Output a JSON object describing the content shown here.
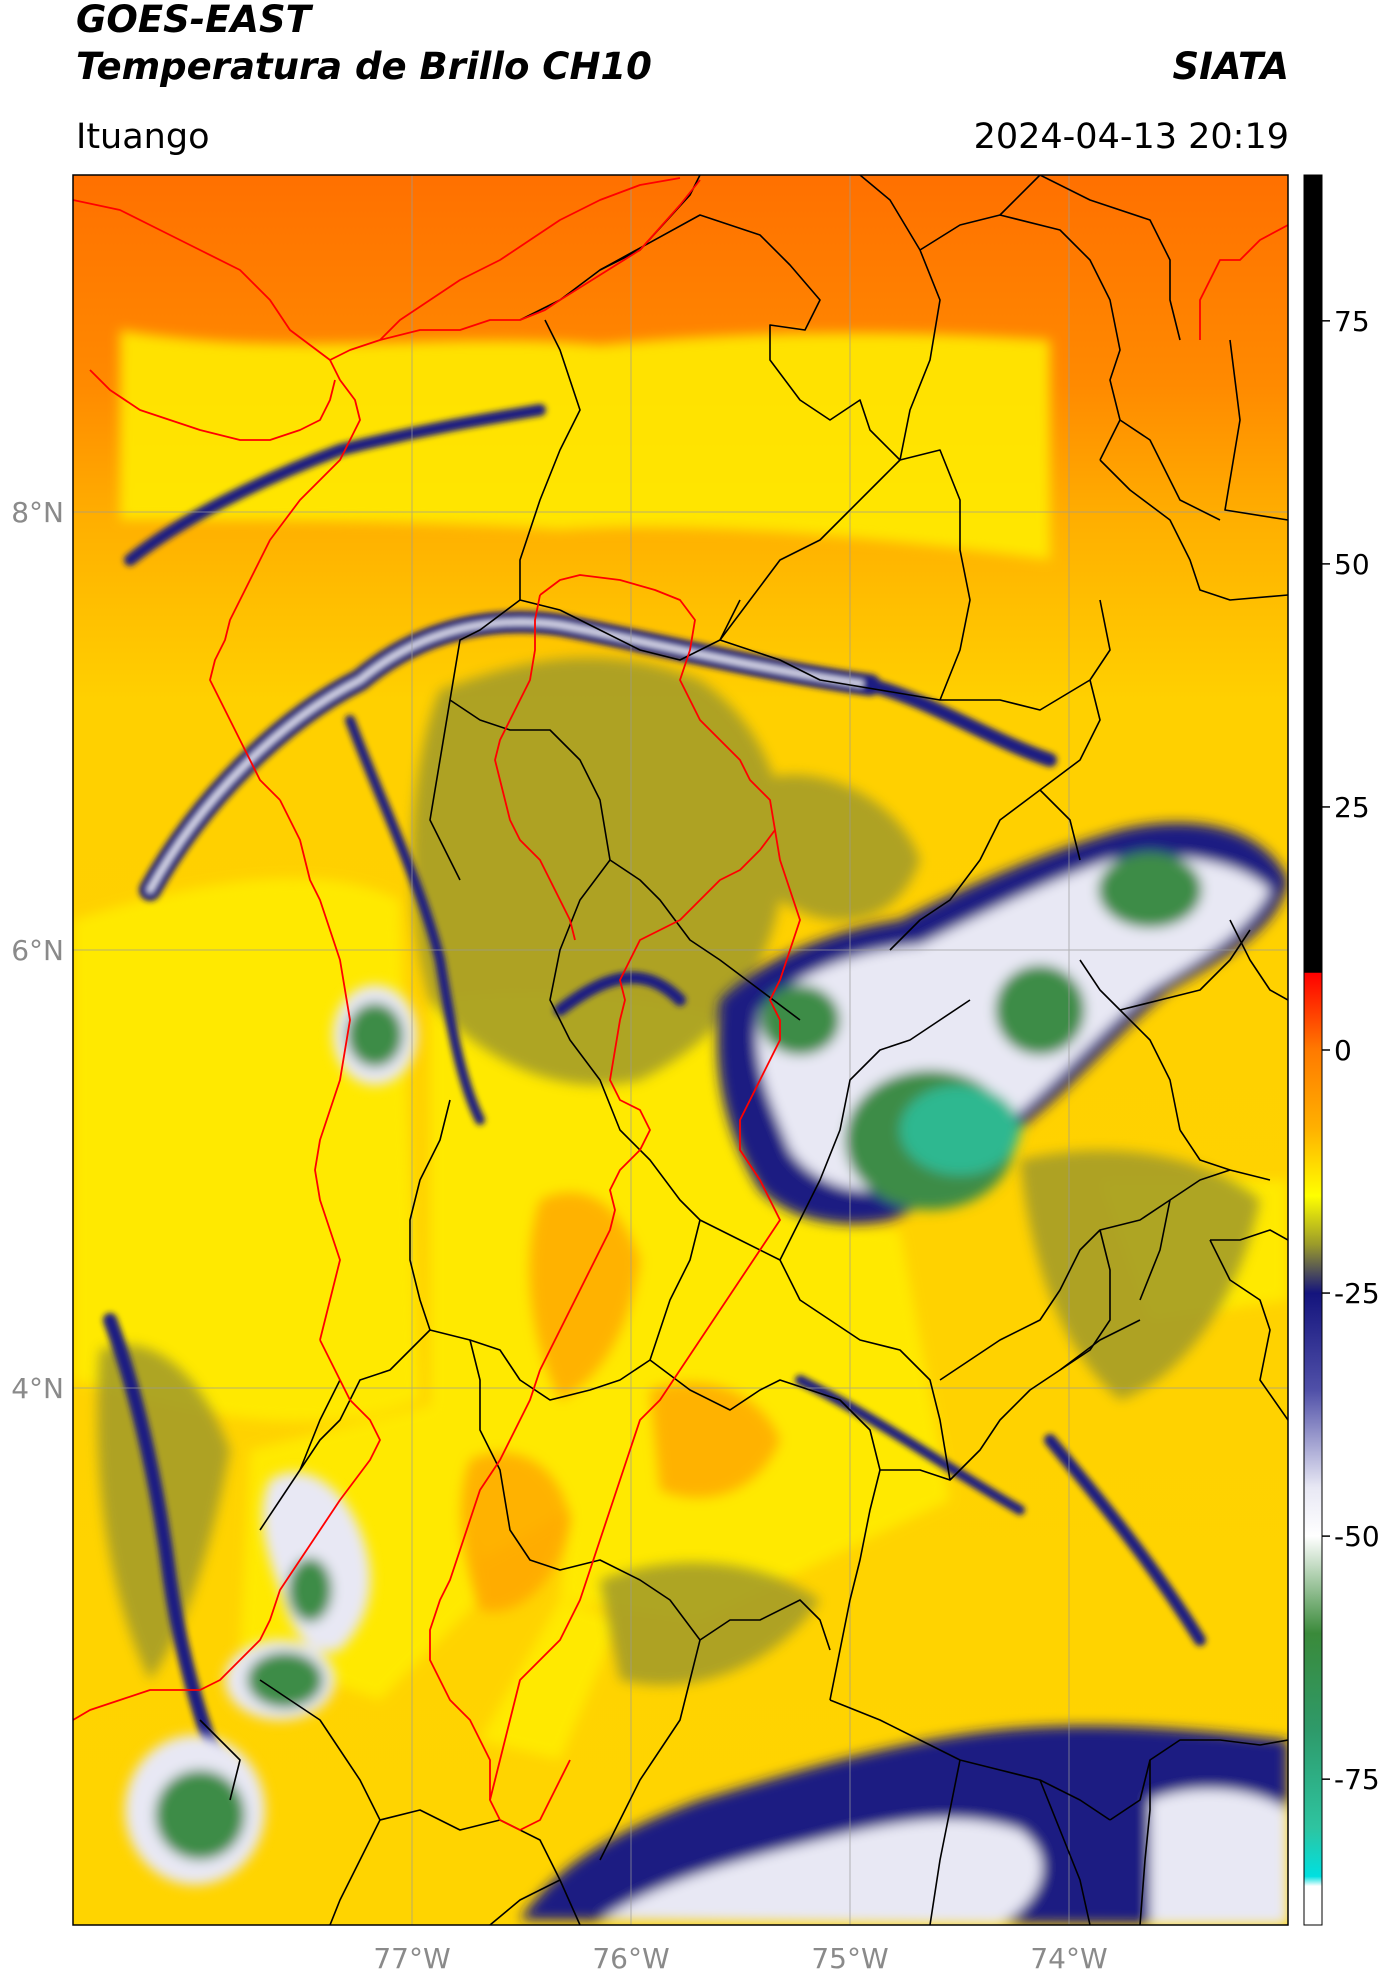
{
  "header": {
    "line1": "GOES-EAST",
    "line2": "Temperatura de Brillo CH10",
    "organization": "SIATA",
    "region": "Ituango",
    "datetime": "2024-04-13 20:19"
  },
  "map": {
    "lat_labels": [
      "8°N",
      "6°N",
      "4°N"
    ],
    "lon_labels": [
      "77°W",
      "76°W",
      "75°W",
      "74°W"
    ]
  },
  "colorbar": {
    "ticks": [
      "75",
      "50",
      "25",
      "0",
      "-25",
      "-50",
      "-75"
    ],
    "tick_values": [
      75,
      50,
      25,
      0,
      -25,
      -50,
      -75
    ],
    "range": [
      -90,
      90
    ],
    "stops": [
      {
        "v": 90,
        "c": "#000000"
      },
      {
        "v": 8,
        "c": "#000000"
      },
      {
        "v": 7.9,
        "c": "#ff0000"
      },
      {
        "v": 0,
        "c": "#ff7a00"
      },
      {
        "v": -8,
        "c": "#ffb000"
      },
      {
        "v": -15,
        "c": "#ffff00"
      },
      {
        "v": -20,
        "c": "#9b9b2a"
      },
      {
        "v": -25,
        "c": "#14147d"
      },
      {
        "v": -35,
        "c": "#5050a8"
      },
      {
        "v": -45,
        "c": "#e8e8f4"
      },
      {
        "v": -50,
        "c": "#ffffff"
      },
      {
        "v": -60,
        "c": "#3a8a3a"
      },
      {
        "v": -70,
        "c": "#2e9a6a"
      },
      {
        "v": -80,
        "c": "#2ec4a0"
      },
      {
        "v": -85,
        "c": "#00e0e0"
      },
      {
        "v": -86,
        "c": "#ffffff"
      },
      {
        "v": -90,
        "c": "#ffffff"
      }
    ]
  },
  "colors": {
    "orange": "#ff7a00",
    "yellow": "#ffec00",
    "olive": "#9e9a2a",
    "navy": "#1b1b82",
    "green": "#3c8c46",
    "teal": "#2fb890",
    "border_red": "#ff0000",
    "border_black": "#000000"
  }
}
